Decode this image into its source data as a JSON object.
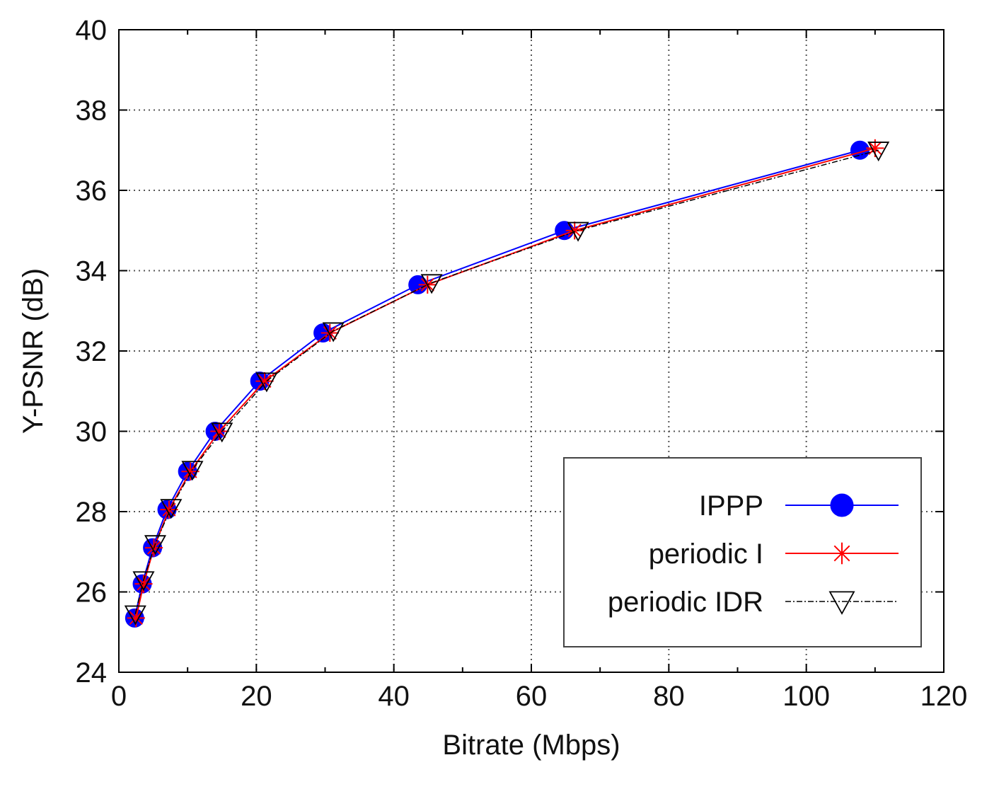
{
  "chart_data": {
    "type": "line",
    "xlabel": "Bitrate (Mbps)",
    "ylabel": "Y-PSNR (dB)",
    "xlim": [
      0,
      120
    ],
    "ylim": [
      24,
      40
    ],
    "xticks": [
      0,
      20,
      40,
      60,
      80,
      100,
      120
    ],
    "yticks": [
      24,
      26,
      28,
      30,
      32,
      34,
      36,
      38,
      40
    ],
    "grid": true,
    "legend_position": "bottom-right",
    "series": [
      {
        "name": "IPPP",
        "color": "#0000ff",
        "marker": "filled-circle",
        "line": "solid",
        "x": [
          2.3,
          3.4,
          4.9,
          7.0,
          10.0,
          14.0,
          20.5,
          29.7,
          43.5,
          64.8,
          107.8
        ],
        "y": [
          25.35,
          26.2,
          27.1,
          28.05,
          29.0,
          30.0,
          31.25,
          32.45,
          33.65,
          35.0,
          37.0
        ]
      },
      {
        "name": "periodic I",
        "color": "#ff0000",
        "marker": "asterisk",
        "line": "solid",
        "x": [
          2.5,
          3.6,
          5.1,
          7.3,
          10.4,
          14.6,
          21.2,
          30.7,
          44.9,
          66.3,
          110.0
        ],
        "y": [
          25.35,
          26.2,
          27.1,
          28.05,
          29.0,
          30.0,
          31.25,
          32.45,
          33.65,
          35.0,
          37.05
        ]
      },
      {
        "name": "periodic IDR",
        "color": "#000000",
        "marker": "open-triangle-down",
        "line": "dash-dot",
        "x": [
          2.4,
          3.6,
          5.3,
          7.6,
          10.7,
          15.0,
          21.5,
          31.2,
          45.5,
          66.8,
          110.5
        ],
        "y": [
          25.45,
          26.3,
          27.2,
          28.1,
          29.05,
          30.0,
          31.25,
          32.5,
          33.7,
          35.0,
          37.0
        ]
      }
    ]
  }
}
